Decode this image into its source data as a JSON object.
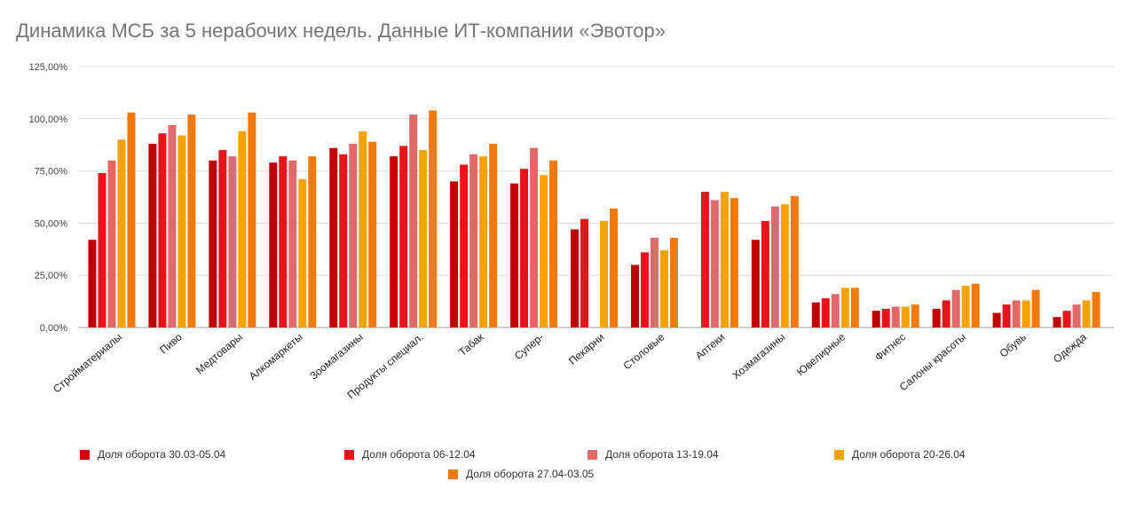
{
  "chart_data": {
    "type": "bar",
    "title": "Динамика МСБ за 5 нерабочих недель. Данные ИТ-компании «Эвотор»",
    "xlabel": "",
    "ylabel": "",
    "ylim": [
      0,
      125
    ],
    "y_ticks": [
      "0,00%",
      "25,00%",
      "50,00%",
      "75,00%",
      "100,00%",
      "125,00%"
    ],
    "grid": true,
    "legend_position": "bottom",
    "categories": [
      "Стройматериалы",
      "Пиво",
      "Медтовары",
      "Алкомаркеты",
      "Зоомагазины",
      "Продукты специал.",
      "Табак",
      "Супер-",
      "Пекарни",
      "Столовые",
      "Аптеки",
      "Хозмагазины",
      "Ювелирные",
      "Фитнес",
      "Салоны красоты",
      "Обувь",
      "Одежда"
    ],
    "series": [
      {
        "name": "Доля оборота 30.03-05.04",
        "color": "#c00000",
        "values": [
          42,
          88,
          80,
          79,
          86,
          82,
          70,
          69,
          47,
          30,
          null,
          42,
          12,
          8,
          9,
          7,
          5
        ]
      },
      {
        "name": "Доля оборота 06-12.04",
        "color": "#e8141a",
        "values": [
          74,
          93,
          85,
          82,
          83,
          87,
          78,
          76,
          52,
          36,
          65,
          51,
          14,
          9,
          13,
          11,
          8
        ]
      },
      {
        "name": "Доля оборота 13-19.04",
        "color": "#e06a6a",
        "values": [
          80,
          97,
          82,
          80,
          88,
          102,
          83,
          86,
          null,
          43,
          61,
          58,
          16,
          10,
          18,
          13,
          11
        ]
      },
      {
        "name": "Доля оборота 20-26.04",
        "color": "#f5a300",
        "values": [
          90,
          92,
          94,
          71,
          94,
          85,
          82,
          73,
          51,
          37,
          65,
          59,
          19,
          10,
          20,
          13,
          13
        ]
      },
      {
        "name": "Доля оборота 27.04-03.05",
        "color": "#f07a0e",
        "values": [
          103,
          102,
          103,
          82,
          89,
          104,
          88,
          80,
          57,
          43,
          62,
          63,
          19,
          11,
          21,
          18,
          17
        ]
      }
    ]
  }
}
